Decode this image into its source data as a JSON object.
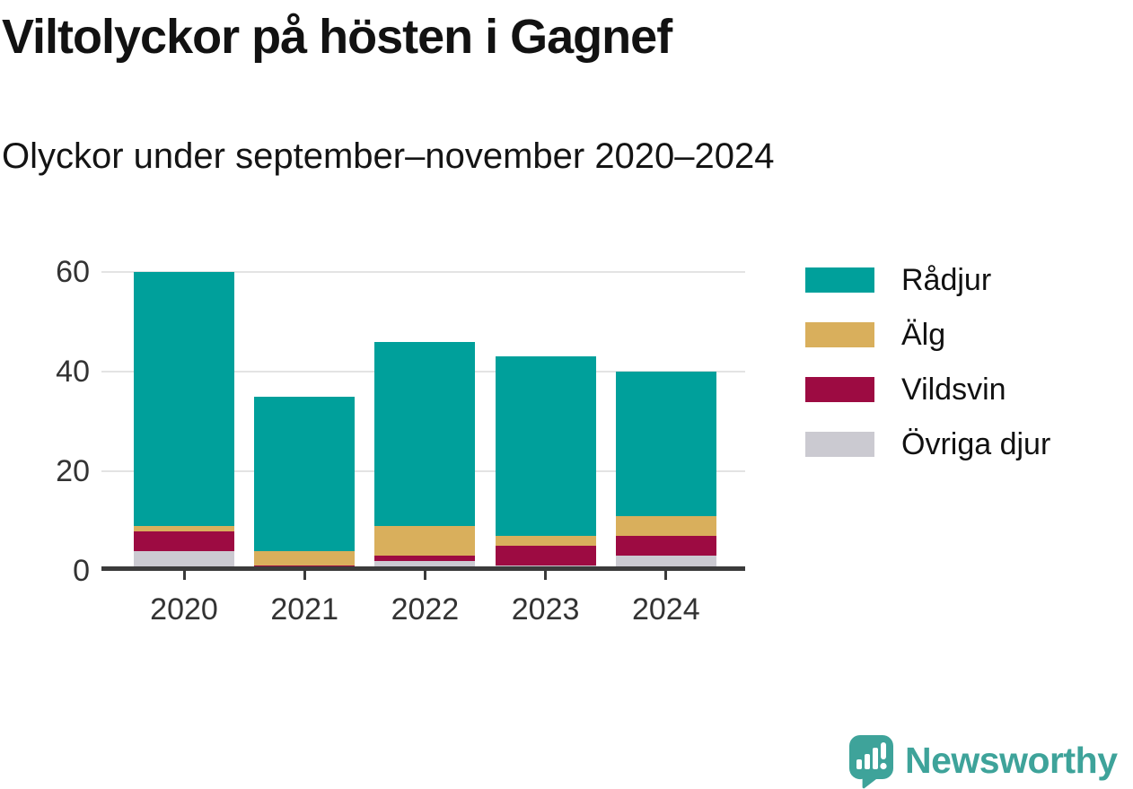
{
  "title": "Viltolyckor på hösten i Gagnef",
  "subtitle": "Olyckor under september–november 2020–2024",
  "chart_data": {
    "type": "bar",
    "stacked": true,
    "title": "Viltolyckor på hösten i Gagnef",
    "subtitle": "Olyckor under september–november 2020–2024",
    "categories": [
      "2020",
      "2021",
      "2022",
      "2023",
      "2024"
    ],
    "series": [
      {
        "name": "Rådjur",
        "color": "#00a09b",
        "values": [
          51,
          31,
          37,
          36,
          29
        ]
      },
      {
        "name": "Älg",
        "color": "#d9af5c",
        "values": [
          1,
          3,
          6,
          2,
          4
        ]
      },
      {
        "name": "Vildsvin",
        "color": "#9d0b42",
        "values": [
          4,
          1,
          1,
          4,
          4
        ]
      },
      {
        "name": "Övriga djur",
        "color": "#cbcad1",
        "values": [
          4,
          0,
          2,
          1,
          3
        ]
      }
    ],
    "stack_order_bottom_to_top": [
      "Övriga djur",
      "Vildsvin",
      "Älg",
      "Rådjur"
    ],
    "totals": [
      60,
      35,
      46,
      43,
      40
    ],
    "y_ticks": [
      0,
      20,
      40,
      60
    ],
    "ylim": [
      0,
      60
    ],
    "xlabel": "",
    "ylabel": "",
    "grid": "horizontal",
    "legend_position": "right"
  },
  "branding": {
    "name": "Newsworthy",
    "logo_icon": "newsworthy-speech-bubble-chart-icon",
    "color": "#3ea39a"
  }
}
